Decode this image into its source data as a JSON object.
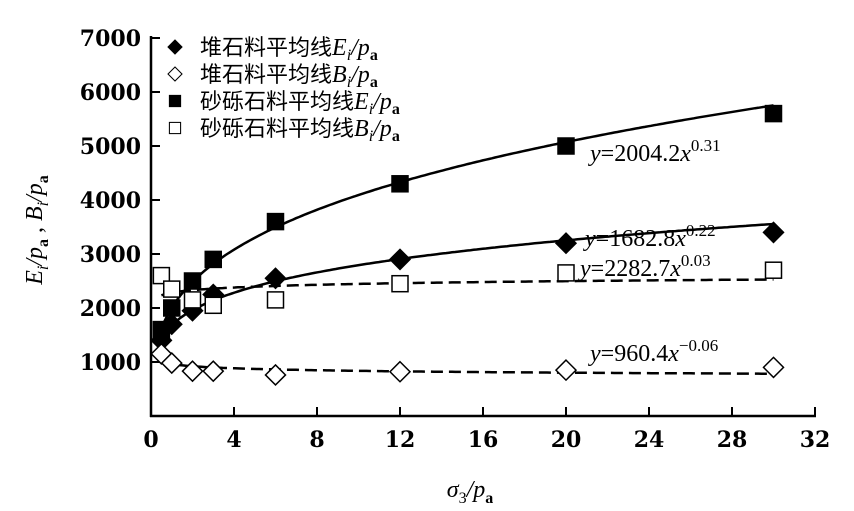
{
  "chart_data": {
    "type": "scatter",
    "xlabel": "σ3/pa",
    "ylabel": "Ei/pa , Bi/pa",
    "xlim": [
      0,
      32
    ],
    "ylim": [
      0,
      7000
    ],
    "xticks": [
      "0",
      "4",
      "8",
      "12",
      "16",
      "20",
      "24",
      "28",
      "32"
    ],
    "yticks": [
      "1000",
      "2000",
      "3000",
      "4000",
      "5000",
      "6000",
      "7000"
    ],
    "grid": false,
    "legend_position": "top-left",
    "series": [
      {
        "name": "堆石料平均线Ei/pa",
        "marker": "filled-diamond",
        "x": [
          0.5,
          1,
          2,
          3,
          6,
          12,
          20,
          30
        ],
        "y": [
          1400,
          1700,
          1950,
          2250,
          2550,
          2900,
          3200,
          3400
        ],
        "fit": {
          "label": "y=1682.8x0.22",
          "a": 1682.8,
          "b": 0.22,
          "style": "solid"
        }
      },
      {
        "name": "堆石料平均线Bi/pa",
        "marker": "open-diamond",
        "x": [
          0.5,
          1,
          2,
          3,
          6,
          12,
          20,
          30
        ],
        "y": [
          1150,
          980,
          830,
          830,
          760,
          820,
          850,
          900
        ],
        "fit": {
          "label": "y=960.4x−0.06",
          "a": 960.4,
          "b": -0.06,
          "style": "dashed"
        }
      },
      {
        "name": "砂砾石料平均线Ei/pa",
        "marker": "filled-square",
        "x": [
          0.5,
          1,
          2,
          3,
          6,
          12,
          20,
          30
        ],
        "y": [
          1600,
          2000,
          2500,
          2900,
          3600,
          4300,
          5000,
          5600
        ],
        "fit": {
          "label": "y=2004.2x0.31",
          "a": 2004.2,
          "b": 0.31,
          "style": "solid"
        }
      },
      {
        "name": "砂砾石料平均线Bi/pa",
        "marker": "open-square",
        "x": [
          0.5,
          1,
          2,
          3,
          6,
          12,
          20,
          30
        ],
        "y": [
          2600,
          2350,
          2150,
          2050,
          2150,
          2450,
          2650,
          2700
        ],
        "fit": {
          "label": "y=2282.7x0.03",
          "a": 2282.7,
          "b": 0.03,
          "style": "dashed"
        }
      }
    ]
  }
}
